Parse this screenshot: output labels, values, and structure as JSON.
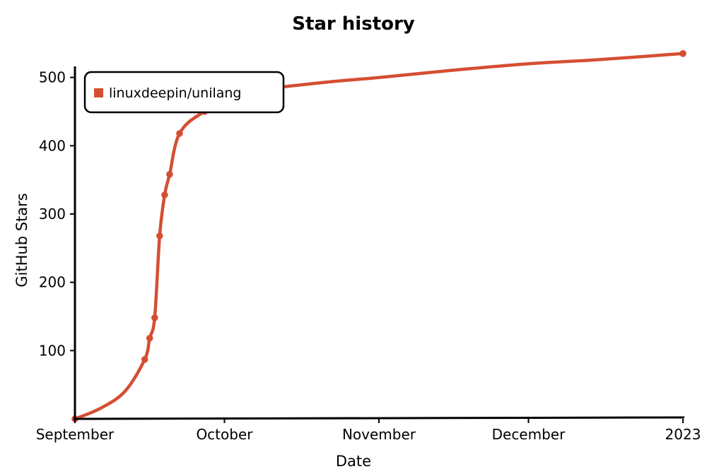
{
  "chart_data": {
    "type": "line",
    "title": "Star history",
    "xlabel": "Date",
    "ylabel": "GitHub Stars",
    "x_tick_labels": [
      "September",
      "October",
      "November",
      "December",
      "2023"
    ],
    "x_ticks": [
      "2022-09-01",
      "2022-10-01",
      "2022-11-01",
      "2022-12-01",
      "2023-01-01"
    ],
    "y_ticks": [
      100,
      200,
      300,
      400,
      500
    ],
    "ylim": [
      0,
      540
    ],
    "xlim": [
      "2022-09-01",
      "2023-01-01"
    ],
    "grid": false,
    "legend_position": "top-left",
    "series": [
      {
        "name": "linuxdeepin/unilang",
        "color": "#d54e32",
        "points": [
          {
            "x": "2022-09-01",
            "y": 0
          },
          {
            "x": "2022-09-06",
            "y": 15
          },
          {
            "x": "2022-09-11",
            "y": 40
          },
          {
            "x": "2022-09-15",
            "y": 87
          },
          {
            "x": "2022-09-16",
            "y": 118
          },
          {
            "x": "2022-09-17",
            "y": 148
          },
          {
            "x": "2022-09-18",
            "y": 268
          },
          {
            "x": "2022-09-19",
            "y": 328
          },
          {
            "x": "2022-09-20",
            "y": 358
          },
          {
            "x": "2022-09-22",
            "y": 418
          },
          {
            "x": "2022-09-27",
            "y": 450
          },
          {
            "x": "2022-10-06",
            "y": 478
          },
          {
            "x": "2022-10-20",
            "y": 492
          },
          {
            "x": "2022-11-01",
            "y": 500
          },
          {
            "x": "2022-11-15",
            "y": 510
          },
          {
            "x": "2022-12-01",
            "y": 520
          },
          {
            "x": "2022-12-15",
            "y": 526
          },
          {
            "x": "2023-01-01",
            "y": 535
          }
        ],
        "marked_points": [
          {
            "x": "2022-09-01",
            "y": 0
          },
          {
            "x": "2022-09-15",
            "y": 87
          },
          {
            "x": "2022-09-16",
            "y": 118
          },
          {
            "x": "2022-09-17",
            "y": 148
          },
          {
            "x": "2022-09-18",
            "y": 268
          },
          {
            "x": "2022-09-19",
            "y": 328
          },
          {
            "x": "2022-09-20",
            "y": 358
          },
          {
            "x": "2022-09-22",
            "y": 418
          },
          {
            "x": "2022-09-27",
            "y": 450
          },
          {
            "x": "2022-10-06",
            "y": 478
          },
          {
            "x": "2023-01-01",
            "y": 535
          }
        ]
      }
    ]
  }
}
